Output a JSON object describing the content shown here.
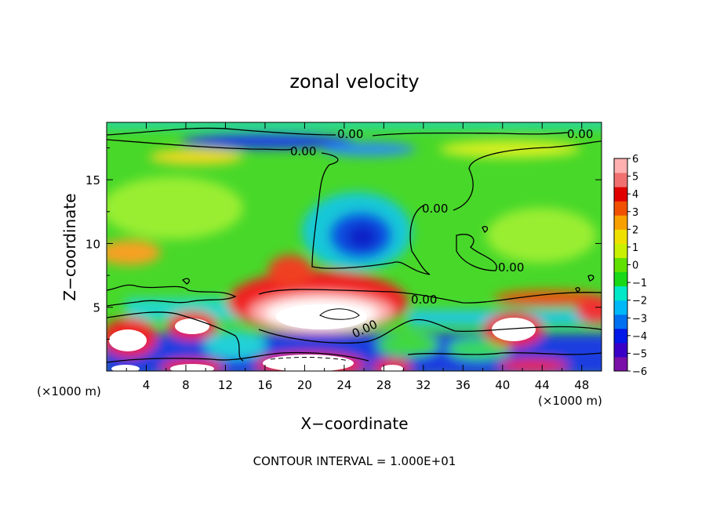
{
  "chart_data": {
    "type": "heatmap",
    "title": "zonal velocity",
    "xlabel": "X−coordinate",
    "ylabel": "Z−coordinate",
    "x_unit_label": "(×1000 m)",
    "z_unit_label": "(×1000 m)",
    "xlim": [
      0,
      50
    ],
    "ylim": [
      0,
      19.5
    ],
    "x_ticks": [
      "4",
      "8",
      "12",
      "16",
      "20",
      "24",
      "28",
      "32",
      "36",
      "40",
      "44",
      "48"
    ],
    "x_tick_values": [
      4,
      8,
      12,
      16,
      20,
      24,
      28,
      32,
      36,
      40,
      44,
      48
    ],
    "y_ticks": [
      "5",
      "10",
      "15"
    ],
    "y_tick_values": [
      5,
      10,
      15
    ],
    "colorbar": {
      "labels": [
        "6",
        "5",
        "4",
        "3",
        "2",
        "1",
        "0",
        "−1",
        "−2",
        "−3",
        "−4",
        "−5",
        "−6"
      ],
      "range": [
        -6,
        6
      ],
      "colors": [
        "#7a10a8",
        "#3a00c8",
        "#0018e8",
        "#0070f0",
        "#00b8f8",
        "#00e8c8",
        "#18d818",
        "#60e000",
        "#c8f000",
        "#f0e000",
        "#f8a000",
        "#f05000",
        "#e00000",
        "#f07070",
        "#ffb0b0"
      ]
    },
    "contour_labels": [
      "0.00",
      "0.00",
      "0.00",
      "0.00",
      "0.00",
      "0.00",
      "0.00"
    ],
    "contour_interval_text": "CONTOUR INTERVAL = 1.000E+01",
    "features": [
      {
        "kind": "max",
        "x": 21,
        "z": 5,
        "value": 6
      },
      {
        "kind": "max",
        "x": 2,
        "z": 2.5,
        "value": 6
      },
      {
        "kind": "max",
        "x": 40.5,
        "z": 3.5,
        "value": 6
      },
      {
        "kind": "max",
        "x": 9,
        "z": 4,
        "value": 6
      },
      {
        "kind": "min",
        "x": 24.5,
        "z": 11,
        "value": -5
      },
      {
        "kind": "min",
        "x": 12,
        "z": 18.3,
        "value": -4
      }
    ]
  }
}
